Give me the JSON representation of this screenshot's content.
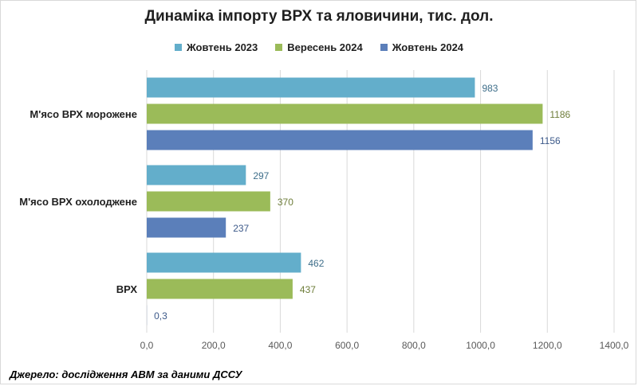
{
  "chart_data": {
    "type": "bar",
    "orientation": "horizontal",
    "title": "Динаміка імпорту ВРХ та яловичини, тис. дол.",
    "categories": [
      "М'ясо ВРХ морожене",
      "М'ясо ВРХ охолоджене",
      "ВРХ"
    ],
    "series": [
      {
        "name": "Жовтень 2023",
        "color": "#63AECB",
        "values": [
          983,
          297,
          462
        ],
        "labels": [
          "983",
          "297",
          "462"
        ],
        "label_color": "#3E6E8A"
      },
      {
        "name": "Вересень 2024",
        "color": "#9BBB59",
        "values": [
          1186,
          370,
          437
        ],
        "labels": [
          "1186",
          "370",
          "437"
        ],
        "label_color": "#6E7D3A"
      },
      {
        "name": "Жовтень 2024",
        "color": "#5B7FBA",
        "values": [
          1156,
          237,
          0.3
        ],
        "labels": [
          "1156",
          "237",
          "0,3"
        ],
        "label_color": "#3D5A8A"
      }
    ],
    "xlim": [
      0,
      1400
    ],
    "xticks": [
      "0,0",
      "200,0",
      "400,0",
      "600,0",
      "800,0",
      "1000,0",
      "1200,0",
      "1400,0"
    ],
    "grid": true,
    "legend_position": "top"
  },
  "source_note": "Джерело: дослідження АВМ за даними ДССУ"
}
